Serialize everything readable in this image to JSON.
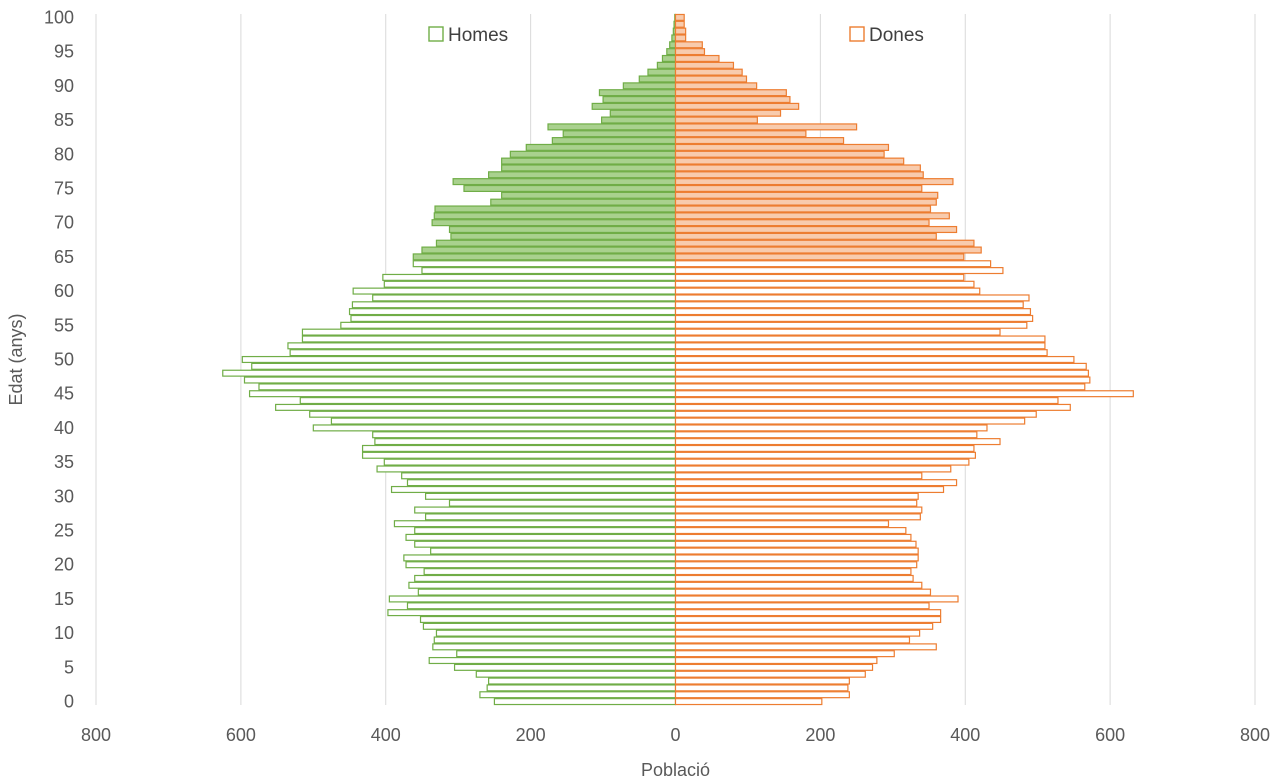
{
  "chart_data": {
    "type": "bar",
    "orientation": "horizontal",
    "title": "",
    "xlabel": "Població",
    "ylabel": "Edat (anys)",
    "xlim": [
      -800,
      800
    ],
    "ylim": [
      0,
      100
    ],
    "x_tick_values": [
      -800,
      -600,
      -400,
      -200,
      0,
      200,
      400,
      600,
      800
    ],
    "x_tick_labels": [
      "800",
      "600",
      "400",
      "200",
      "0",
      "200",
      "400",
      "600",
      "800"
    ],
    "y_tick_values": [
      0,
      5,
      10,
      15,
      20,
      25,
      30,
      35,
      40,
      45,
      50,
      55,
      60,
      65,
      70,
      75,
      80,
      85,
      90,
      95,
      100
    ],
    "y_tick_labels": [
      "0",
      "5",
      "10",
      "15",
      "20",
      "25",
      "30",
      "35",
      "40",
      "45",
      "50",
      "55",
      "60",
      "65",
      "70",
      "75",
      "80",
      "85",
      "90",
      "95",
      "100"
    ],
    "grid": "vertical",
    "legend": "top",
    "filled_from_age": 65,
    "ages": [
      0,
      1,
      2,
      3,
      4,
      5,
      6,
      7,
      8,
      9,
      10,
      11,
      12,
      13,
      14,
      15,
      16,
      17,
      18,
      19,
      20,
      21,
      22,
      23,
      24,
      25,
      26,
      27,
      28,
      29,
      30,
      31,
      32,
      33,
      34,
      35,
      36,
      37,
      38,
      39,
      40,
      41,
      42,
      43,
      44,
      45,
      46,
      47,
      48,
      49,
      50,
      51,
      52,
      53,
      54,
      55,
      56,
      57,
      58,
      59,
      60,
      61,
      62,
      63,
      64,
      65,
      66,
      67,
      68,
      69,
      70,
      71,
      72,
      73,
      74,
      75,
      76,
      77,
      78,
      79,
      80,
      81,
      82,
      83,
      84,
      85,
      86,
      87,
      88,
      89,
      90,
      91,
      92,
      93,
      94,
      95,
      96,
      97,
      98,
      99,
      100
    ],
    "series": [
      {
        "name": "Homes",
        "color": "#70ad47",
        "fill": "#a9d18e",
        "values": [
          250,
          270,
          260,
          258,
          275,
          305,
          340,
          302,
          335,
          333,
          330,
          348,
          352,
          397,
          370,
          395,
          355,
          368,
          360,
          347,
          372,
          375,
          338,
          360,
          372,
          360,
          388,
          345,
          360,
          312,
          345,
          392,
          370,
          378,
          412,
          402,
          432,
          432,
          415,
          418,
          500,
          475,
          505,
          552,
          518,
          588,
          575,
          595,
          625,
          585,
          598,
          532,
          535,
          515,
          515,
          462,
          448,
          450,
          446,
          418,
          445,
          402,
          404,
          350,
          362,
          362,
          350,
          330,
          310,
          312,
          336,
          333,
          332,
          255,
          240,
          292,
          307,
          258,
          240,
          240,
          228,
          206,
          170,
          155,
          176,
          102,
          90,
          115,
          100,
          105,
          72,
          50,
          38,
          25,
          18,
          12,
          8,
          5,
          3,
          2,
          1
        ]
      },
      {
        "name": "Dones",
        "color": "#ed7d31",
        "fill": "#f8cbad",
        "values": [
          202,
          240,
          238,
          240,
          262,
          272,
          278,
          302,
          360,
          323,
          337,
          355,
          366,
          366,
          350,
          390,
          352,
          340,
          328,
          325,
          333,
          335,
          335,
          332,
          325,
          318,
          294,
          338,
          340,
          333,
          335,
          370,
          388,
          340,
          380,
          405,
          414,
          412,
          448,
          416,
          430,
          482,
          498,
          545,
          528,
          632,
          565,
          572,
          570,
          567,
          550,
          513,
          510,
          510,
          448,
          485,
          493,
          490,
          480,
          488,
          420,
          412,
          398,
          452,
          435,
          398,
          422,
          412,
          360,
          388,
          350,
          378,
          352,
          360,
          362,
          340,
          383,
          342,
          338,
          315,
          288,
          294,
          232,
          180,
          250,
          113,
          145,
          170,
          158,
          153,
          112,
          98,
          92,
          80,
          60,
          40,
          37,
          14,
          14,
          12,
          12
        ]
      }
    ]
  }
}
